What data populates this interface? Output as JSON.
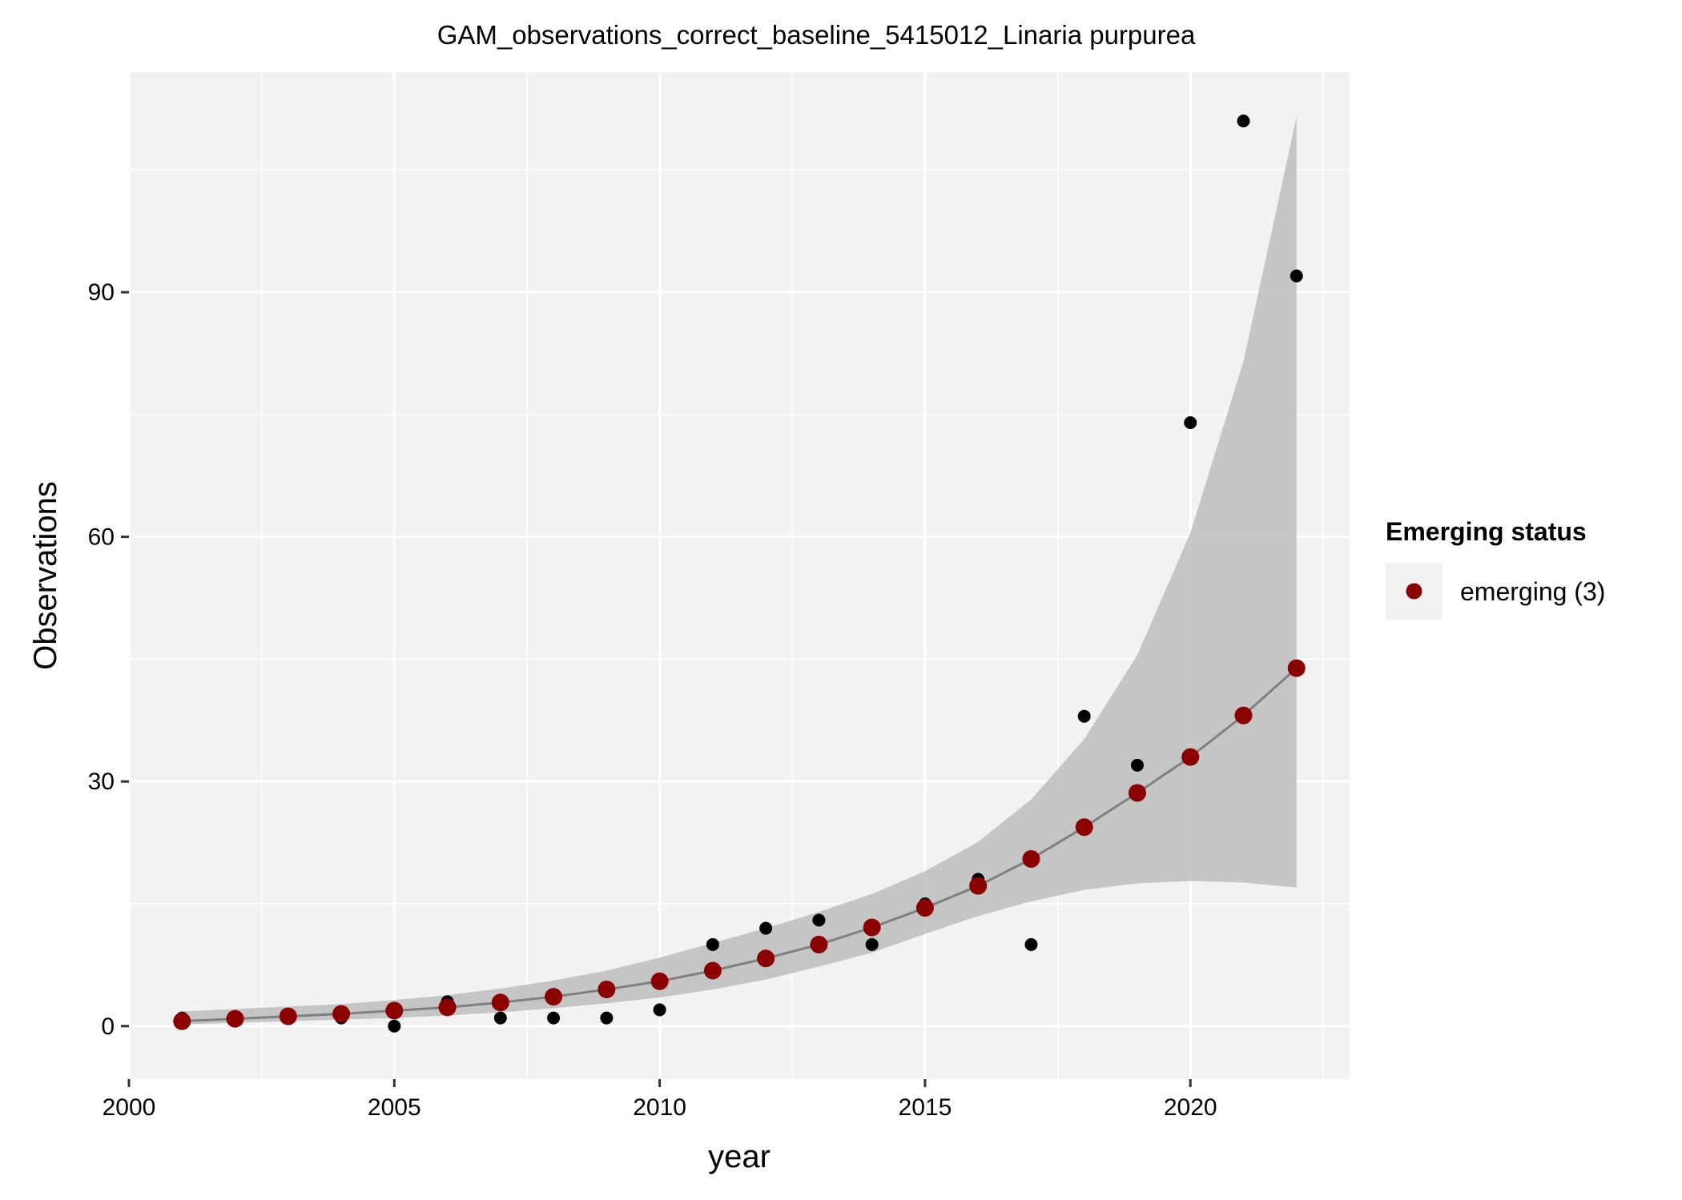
{
  "chart_data": {
    "type": "scatter",
    "title": "GAM_observations_correct_baseline_5415012_Linaria purpurea",
    "xlabel": "year",
    "ylabel": "Observations",
    "xlim": [
      2000,
      2023
    ],
    "ylim": [
      -6.5,
      117
    ],
    "x_ticks": [
      2000,
      2005,
      2010,
      2015,
      2020
    ],
    "y_ticks": [
      0,
      30,
      60,
      90
    ],
    "grid": true,
    "legend": {
      "title": "Emerging status",
      "position": "right",
      "entries": [
        {
          "label": "emerging (3)",
          "color": "#8B0000"
        }
      ]
    },
    "colors": {
      "panel": "#F2F2F2",
      "grid": "#FFFFFF",
      "observed": "#000000",
      "fitted": "#8B0000",
      "line": "#808080",
      "ribbon": "#BDBDBD"
    },
    "series": [
      {
        "kind": "observed",
        "x": [
          2001,
          2002,
          2003,
          2004,
          2005,
          2006,
          2007,
          2008,
          2009,
          2010,
          2011,
          2012,
          2013,
          2014,
          2015,
          2016,
          2017,
          2018,
          2019,
          2020,
          2021,
          2022
        ],
        "y": [
          1,
          1,
          1,
          1,
          0,
          3,
          1,
          1,
          1,
          2,
          10,
          12,
          13,
          10,
          15,
          18,
          10,
          38,
          32,
          74,
          111,
          92
        ]
      },
      {
        "kind": "fitted",
        "name": "emerging (3)",
        "x": [
          2001,
          2002,
          2003,
          2004,
          2005,
          2006,
          2007,
          2008,
          2009,
          2010,
          2011,
          2012,
          2013,
          2014,
          2015,
          2016,
          2017,
          2018,
          2019,
          2020,
          2021,
          2022
        ],
        "y": [
          0.6,
          0.9,
          1.2,
          1.5,
          1.9,
          2.3,
          2.9,
          3.6,
          4.5,
          5.5,
          6.8,
          8.3,
          10.0,
          12.1,
          14.5,
          17.2,
          20.5,
          24.4,
          28.6,
          33.0,
          38.1,
          43.9
        ],
        "lower": [
          0.2,
          0.4,
          0.6,
          0.8,
          1.0,
          1.3,
          1.7,
          2.2,
          2.8,
          3.5,
          4.5,
          5.7,
          7.3,
          9.0,
          11.3,
          13.5,
          15.3,
          16.7,
          17.5,
          17.8,
          17.6,
          17.0
        ],
        "upper": [
          1.8,
          2.1,
          2.4,
          2.7,
          3.2,
          3.8,
          4.6,
          5.6,
          6.8,
          8.4,
          10.2,
          12.0,
          14.0,
          16.2,
          19.0,
          22.6,
          27.8,
          35.2,
          45.5,
          60.5,
          81.5,
          111.5
        ]
      }
    ]
  }
}
